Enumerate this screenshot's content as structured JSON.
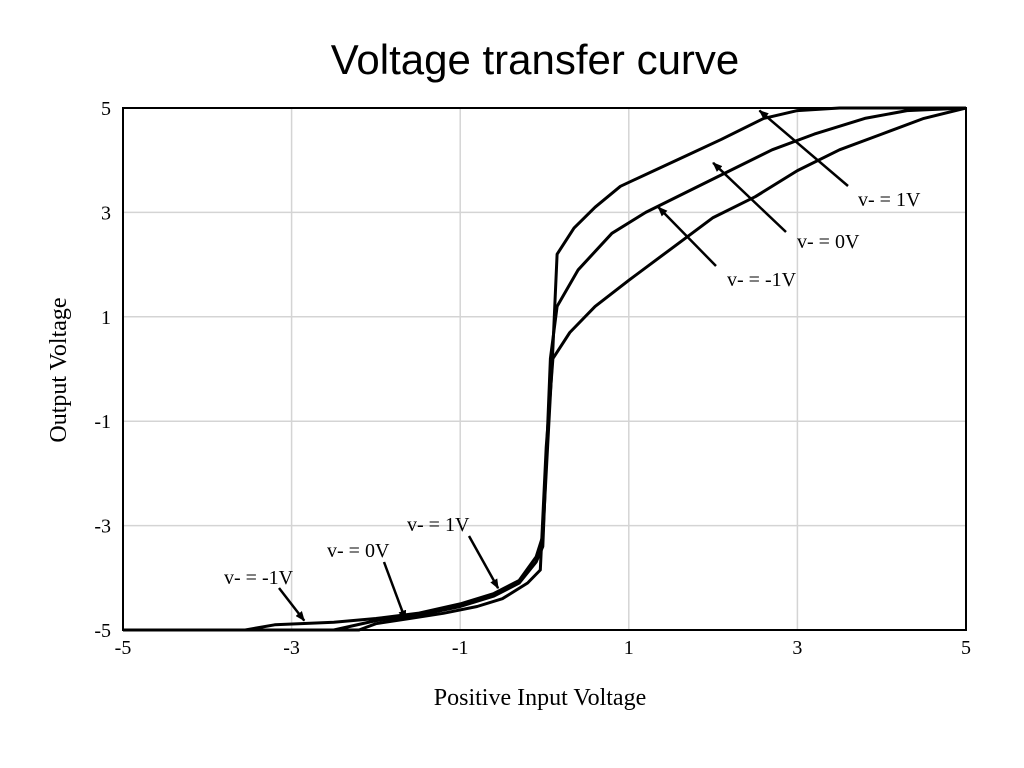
{
  "chart_data": {
    "type": "line",
    "title": "Voltage transfer curve",
    "xlabel": "Positive Input Voltage",
    "ylabel": "Output Voltage",
    "xlim": [
      -5,
      5
    ],
    "ylim": [
      -5,
      5
    ],
    "xticks": [
      -5,
      -3,
      -1,
      1,
      3,
      5
    ],
    "yticks": [
      -5,
      -3,
      -1,
      1,
      3,
      5
    ],
    "x_tick_labels": [
      "-5",
      "-3",
      "-1",
      "1",
      "3",
      "5"
    ],
    "y_tick_labels": [
      "-5",
      "-3",
      "-1",
      "1",
      "3",
      "5"
    ],
    "grid": true,
    "series": [
      {
        "points": [
          [
            -5.0,
            -5.0
          ],
          [
            -3.55,
            -5.0
          ],
          [
            -3.2,
            -4.9
          ],
          [
            -2.5,
            -4.85
          ],
          [
            -2.0,
            -4.78
          ],
          [
            -1.5,
            -4.68
          ],
          [
            -1.0,
            -4.5
          ],
          [
            -0.6,
            -4.3
          ],
          [
            -0.3,
            -4.05
          ],
          [
            -0.1,
            -3.6
          ],
          [
            -0.02,
            -3.2
          ],
          [
            0.1,
            0.4
          ],
          [
            0.15,
            2.2
          ],
          [
            0.35,
            2.7
          ],
          [
            0.6,
            3.1
          ],
          [
            0.9,
            3.5
          ],
          [
            1.3,
            3.8
          ],
          [
            1.7,
            4.1
          ],
          [
            2.1,
            4.4
          ],
          [
            2.6,
            4.8
          ],
          [
            3.0,
            4.95
          ],
          [
            3.5,
            5.0
          ],
          [
            5.0,
            5.0
          ]
        ]
      },
      {
        "points": [
          [
            -5.0,
            -5.0
          ],
          [
            -2.5,
            -5.0
          ],
          [
            -2.0,
            -4.82
          ],
          [
            -1.5,
            -4.72
          ],
          [
            -1.0,
            -4.55
          ],
          [
            -0.6,
            -4.35
          ],
          [
            -0.3,
            -4.1
          ],
          [
            -0.1,
            -3.7
          ],
          [
            -0.02,
            -3.4
          ],
          [
            0.07,
            0.2
          ],
          [
            0.15,
            1.2
          ],
          [
            0.4,
            1.9
          ],
          [
            0.8,
            2.6
          ],
          [
            1.2,
            3.0
          ],
          [
            1.7,
            3.4
          ],
          [
            2.2,
            3.8
          ],
          [
            2.7,
            4.2
          ],
          [
            3.2,
            4.5
          ],
          [
            3.8,
            4.8
          ],
          [
            4.3,
            4.95
          ],
          [
            5.0,
            5.0
          ]
        ]
      },
      {
        "points": [
          [
            -5.0,
            -5.0
          ],
          [
            -2.2,
            -5.0
          ],
          [
            -2.0,
            -4.88
          ],
          [
            -1.6,
            -4.78
          ],
          [
            -1.2,
            -4.68
          ],
          [
            -0.8,
            -4.55
          ],
          [
            -0.5,
            -4.4
          ],
          [
            -0.2,
            -4.1
          ],
          [
            -0.05,
            -3.85
          ],
          [
            0.02,
            -1.5
          ],
          [
            0.1,
            0.2
          ],
          [
            0.3,
            0.7
          ],
          [
            0.6,
            1.2
          ],
          [
            1.0,
            1.7
          ],
          [
            1.5,
            2.3
          ],
          [
            2.0,
            2.9
          ],
          [
            2.5,
            3.3
          ],
          [
            3.0,
            3.8
          ],
          [
            3.5,
            4.2
          ],
          [
            4.0,
            4.5
          ],
          [
            4.5,
            4.8
          ],
          [
            5.0,
            5.0
          ]
        ]
      }
    ],
    "annotations": [
      {
        "text": "v- = 1V",
        "target": [
          2.55,
          4.95
        ]
      },
      {
        "text": "v- = 0V",
        "target": [
          2.0,
          3.95
        ]
      },
      {
        "text": "v- = -1V",
        "target": [
          1.35,
          3.1
        ]
      },
      {
        "text": "v- = 1V",
        "target": [
          -0.55,
          -4.2
        ]
      },
      {
        "text": "v- = 0V",
        "target": [
          -1.65,
          -4.8
        ]
      },
      {
        "text": "v- = -1V",
        "target": [
          -2.85,
          -4.82
        ]
      }
    ]
  }
}
